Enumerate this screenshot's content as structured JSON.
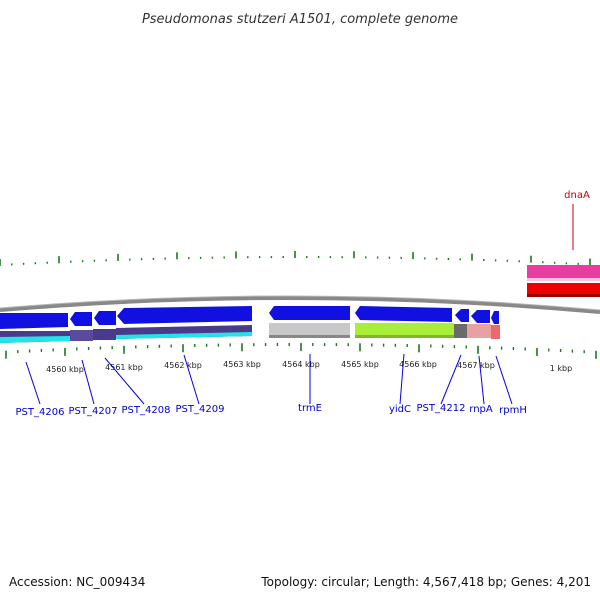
{
  "title": "Pseudomonas stutzeri A1501, complete genome",
  "footer": {
    "accession": "Accession: NC_009434",
    "topology": "Topology: circular; Length: 4,567,418 bp; Genes: 4,201"
  },
  "tick_labels": [
    "4560 kbp",
    "4561 kbp",
    "4562 kbp",
    "4563 kbp",
    "4564 kbp",
    "4565 kbp",
    "4566 kbp",
    "4567 kbp",
    "1 kbp"
  ],
  "genes": {
    "reverse": [
      "PST_4206",
      "PST_4207",
      "PST_4208",
      "PST_4209",
      "trmE",
      "yidC",
      "PST_4212",
      "rnpA",
      "rpmH"
    ],
    "forward": [
      "dnaA"
    ]
  },
  "colors": {
    "forward_strand": "#0000ee",
    "forward_label": "#cc0000",
    "cds_blue": "#1010e0",
    "cyan": "#22e4e8",
    "purple": "#4a3a8c",
    "gray": "#c8c8c8",
    "lime": "#a8ef3a",
    "pink": "#e8a0a0",
    "magenta": "#e83ca0",
    "red": "#ee0000",
    "tick_green": "#1a7a1a",
    "backbone": "#888888"
  }
}
